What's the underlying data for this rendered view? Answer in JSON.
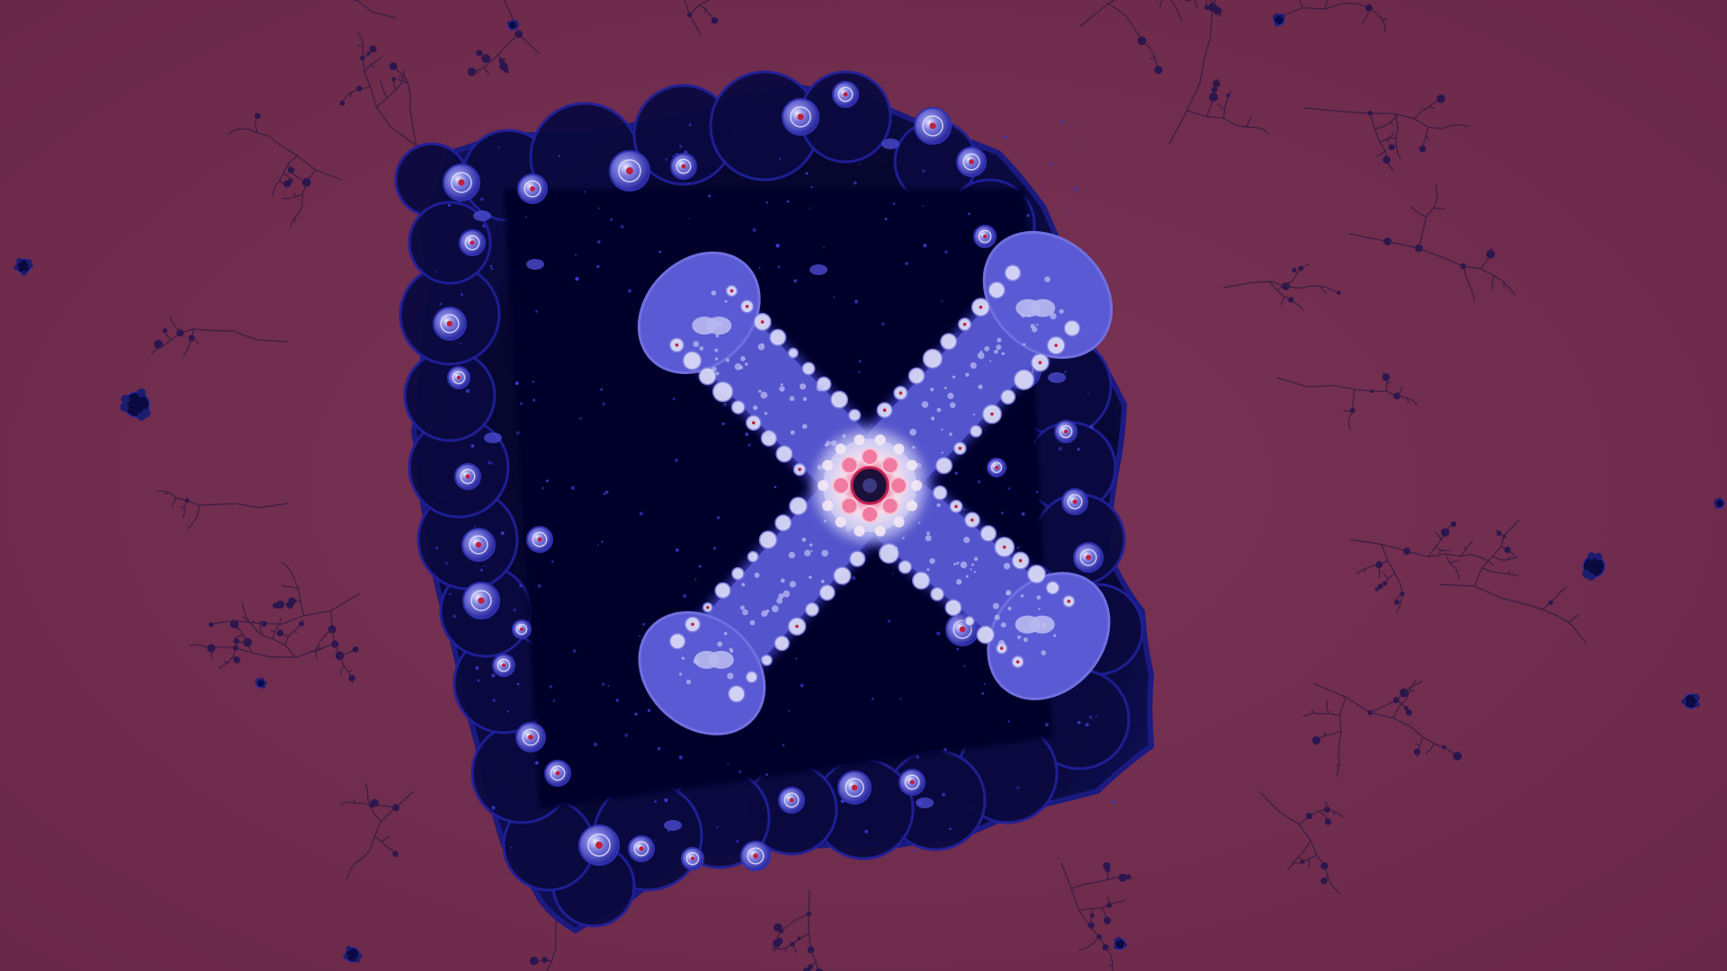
{
  "image": {
    "subject": "fractal-render",
    "colors": {
      "background": "#6b2a4a",
      "background_light": "#7a3456",
      "dark_body": "#0a0a40",
      "deep_body": "#05052a",
      "mid_blue": "#2a2aa0",
      "bright_blue": "#5050d0",
      "lavender": "#b8b8f0",
      "core_pink": "#f07aa0",
      "core_white": "#f4e8f4",
      "filament": "#2a1a40",
      "spot_red": "#c0203a"
    }
  }
}
